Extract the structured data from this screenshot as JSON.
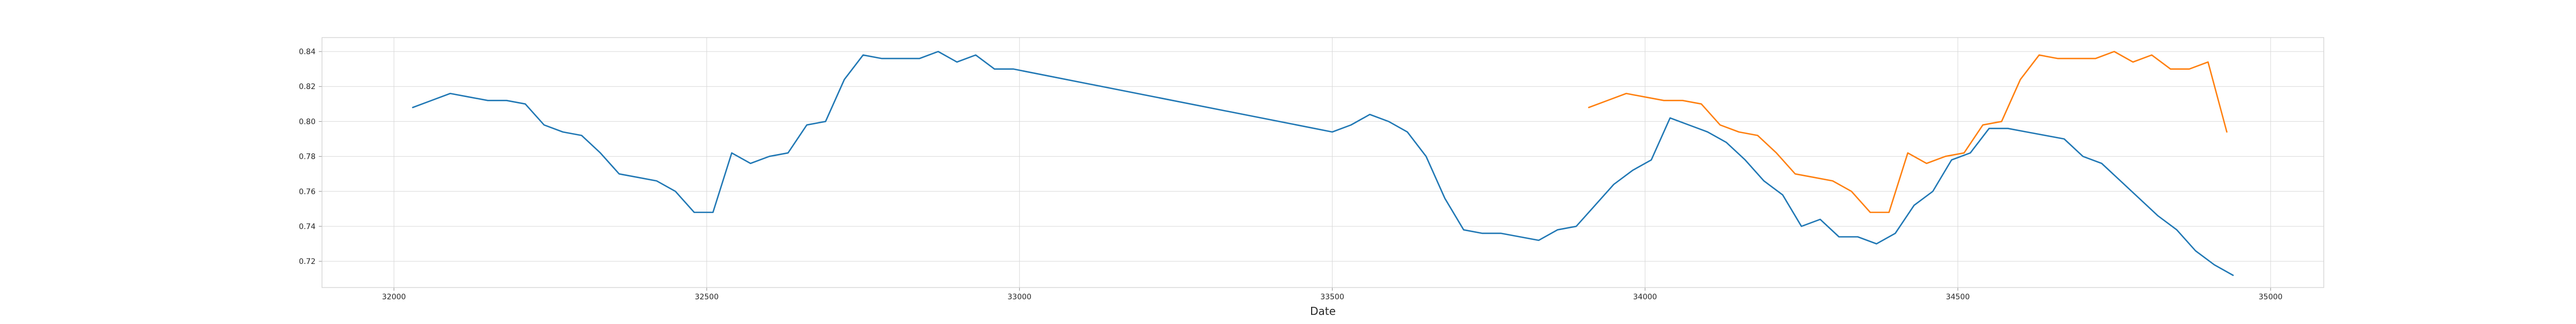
{
  "chart_data": {
    "type": "line",
    "title": "",
    "xlabel": "Date",
    "ylabel": "",
    "xlim": [
      31885,
      35085
    ],
    "ylim": [
      0.705,
      0.848
    ],
    "x_ticks": [
      32000,
      32500,
      33000,
      33500,
      34000,
      34500,
      35000
    ],
    "x_tick_labels": [
      "32000",
      "32500",
      "33000",
      "33500",
      "34000",
      "34500",
      "35000"
    ],
    "y_ticks": [
      0.72,
      0.74,
      0.76,
      0.78,
      0.8,
      0.82,
      0.84
    ],
    "y_tick_labels": [
      "0.72",
      "0.74",
      "0.76",
      "0.78",
      "0.80",
      "0.82",
      "0.84"
    ],
    "grid": true,
    "series": [
      {
        "color": "#1f77b4",
        "x": [
          32030,
          32060,
          32090,
          32120,
          32150,
          32180,
          32210,
          32240,
          32270,
          32300,
          32330,
          32360,
          32390,
          32420,
          32450,
          32480,
          32510,
          32540,
          32570,
          32600,
          32630,
          32660,
          32690,
          32720,
          32750,
          32780,
          32810,
          32840,
          32870,
          32900,
          32930,
          32960,
          32990,
          33500,
          33530,
          33560,
          33590,
          33620,
          33650,
          33680,
          33710,
          33740,
          33770,
          33800,
          33830,
          33860,
          33890,
          33920,
          33950,
          33980,
          34010,
          34040,
          34070,
          34100,
          34130,
          34160,
          34190,
          34220,
          34250,
          34280,
          34310,
          34340,
          34370,
          34400,
          34430,
          34460,
          34490,
          34520,
          34550,
          34580,
          34610,
          34640,
          34670,
          34700,
          34730,
          34760,
          34790,
          34820,
          34850,
          34880,
          34910,
          34940
        ],
        "y": [
          0.808,
          0.812,
          0.816,
          0.814,
          0.812,
          0.812,
          0.81,
          0.798,
          0.794,
          0.792,
          0.782,
          0.77,
          0.768,
          0.766,
          0.76,
          0.748,
          0.748,
          0.782,
          0.776,
          0.78,
          0.782,
          0.798,
          0.8,
          0.824,
          0.838,
          0.836,
          0.836,
          0.836,
          0.84,
          0.834,
          0.838,
          0.83,
          0.83,
          0.794,
          0.798,
          0.804,
          0.8,
          0.794,
          0.78,
          0.756,
          0.738,
          0.736,
          0.736,
          0.734,
          0.732,
          0.738,
          0.74,
          0.752,
          0.764,
          0.772,
          0.778,
          0.802,
          0.798,
          0.794,
          0.788,
          0.778,
          0.766,
          0.758,
          0.74,
          0.744,
          0.734,
          0.734,
          0.73,
          0.736,
          0.752,
          0.76,
          0.778,
          0.782,
          0.796,
          0.796,
          0.794,
          0.792,
          0.79,
          0.78,
          0.776,
          0.766,
          0.756,
          0.746,
          0.738,
          0.726,
          0.718,
          0.712
        ]
      },
      {
        "color": "#ff7f0e",
        "x": [
          33910,
          33940,
          33970,
          34000,
          34030,
          34060,
          34090,
          34120,
          34150,
          34180,
          34210,
          34240,
          34270,
          34300,
          34330,
          34360,
          34390,
          34420,
          34450,
          34480,
          34510,
          34540,
          34570,
          34600,
          34630,
          34660,
          34690,
          34720,
          34750,
          34780,
          34810,
          34840,
          34870,
          34900,
          34930
        ],
        "y": [
          0.808,
          0.812,
          0.816,
          0.814,
          0.812,
          0.812,
          0.81,
          0.798,
          0.794,
          0.792,
          0.782,
          0.77,
          0.768,
          0.766,
          0.76,
          0.748,
          0.748,
          0.782,
          0.776,
          0.78,
          0.782,
          0.798,
          0.8,
          0.824,
          0.838,
          0.836,
          0.836,
          0.836,
          0.84,
          0.834,
          0.838,
          0.83,
          0.83,
          0.834,
          0.794
        ]
      }
    ]
  }
}
